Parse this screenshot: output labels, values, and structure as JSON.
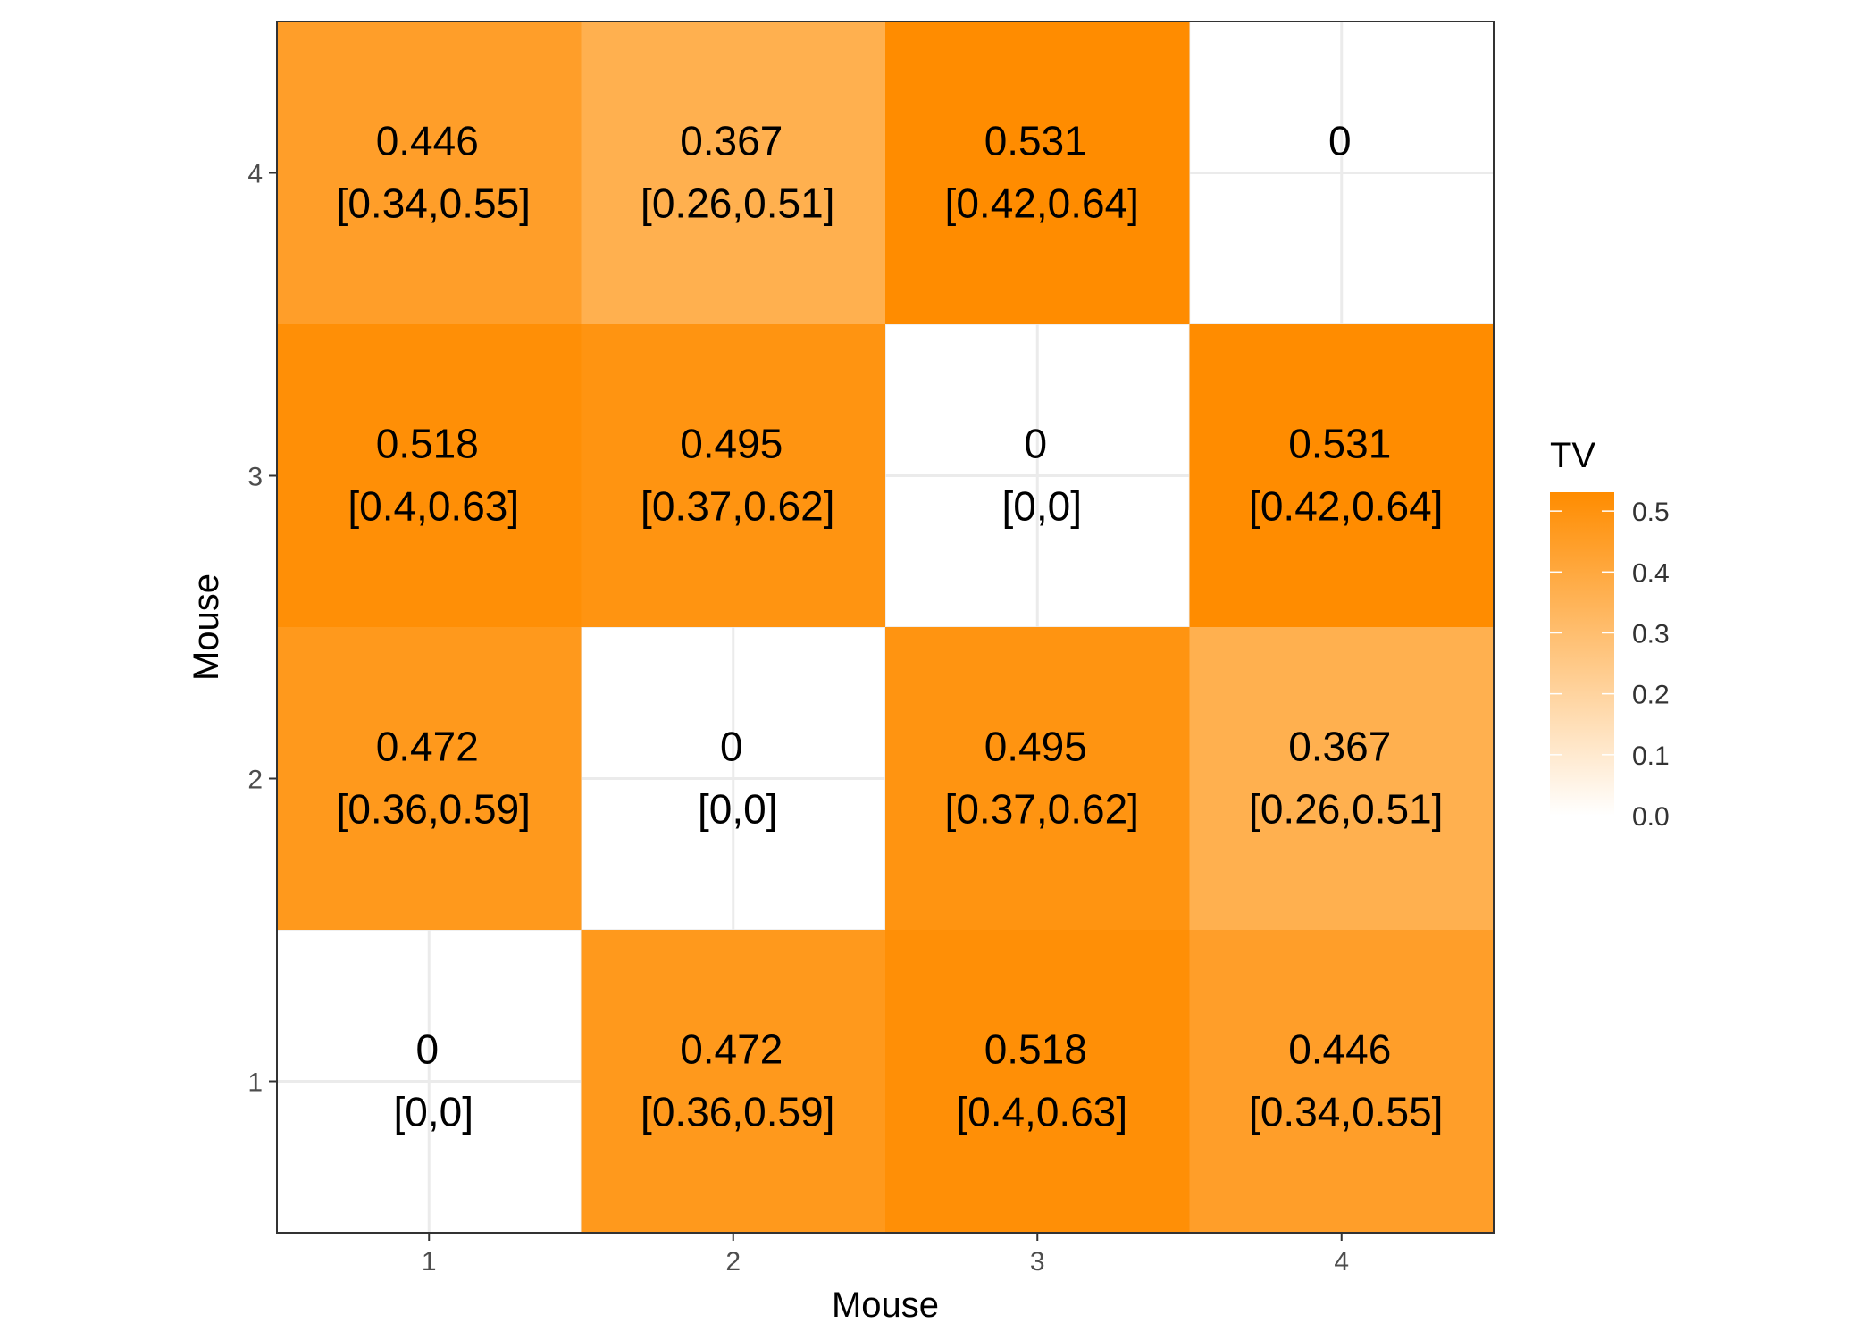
{
  "chart_data": {
    "type": "heatmap",
    "x": [
      1,
      2,
      3,
      4
    ],
    "y": [
      1,
      2,
      3,
      4
    ],
    "xlabel": "Mouse",
    "ylabel": "Mouse",
    "xlim": [
      0.5,
      4.5
    ],
    "ylim": [
      0.5,
      4.5
    ],
    "grid": true,
    "cells": [
      {
        "x": 1,
        "y": 1,
        "value": 0,
        "label": "0",
        "interval": "[0,0]"
      },
      {
        "x": 2,
        "y": 1,
        "value": 0.472,
        "label": "0.472",
        "interval": "[0.36,0.59]"
      },
      {
        "x": 3,
        "y": 1,
        "value": 0.518,
        "label": "0.518",
        "interval": "[0.4,0.63]"
      },
      {
        "x": 4,
        "y": 1,
        "value": 0.446,
        "label": "0.446",
        "interval": "[0.34,0.55]"
      },
      {
        "x": 1,
        "y": 2,
        "value": 0.472,
        "label": "0.472",
        "interval": "[0.36,0.59]"
      },
      {
        "x": 2,
        "y": 2,
        "value": 0,
        "label": "0",
        "interval": "[0,0]"
      },
      {
        "x": 3,
        "y": 2,
        "value": 0.495,
        "label": "0.495",
        "interval": "[0.37,0.62]"
      },
      {
        "x": 4,
        "y": 2,
        "value": 0.367,
        "label": "0.367",
        "interval": "[0.26,0.51]"
      },
      {
        "x": 1,
        "y": 3,
        "value": 0.518,
        "label": "0.518",
        "interval": "[0.4,0.63]"
      },
      {
        "x": 2,
        "y": 3,
        "value": 0.495,
        "label": "0.495",
        "interval": "[0.37,0.62]"
      },
      {
        "x": 3,
        "y": 3,
        "value": 0,
        "label": "0",
        "interval": "[0,0]"
      },
      {
        "x": 4,
        "y": 3,
        "value": 0.531,
        "label": "0.531",
        "interval": "[0.42,0.64]"
      },
      {
        "x": 1,
        "y": 4,
        "value": 0.446,
        "label": "0.446",
        "interval": "[0.34,0.55]"
      },
      {
        "x": 2,
        "y": 4,
        "value": 0.367,
        "label": "0.367",
        "interval": "[0.26,0.51]"
      },
      {
        "x": 3,
        "y": 4,
        "value": 0.531,
        "label": "0.531",
        "interval": "[0.42,0.64]"
      },
      {
        "x": 4,
        "y": 4,
        "value": 0,
        "label": "0",
        "interval": null
      }
    ],
    "legend": {
      "title": "TV",
      "position": "right",
      "breaks": [
        "0.0",
        "0.1",
        "0.2",
        "0.3",
        "0.4",
        "0.5"
      ],
      "break_values": [
        0,
        0.1,
        0.2,
        0.3,
        0.4,
        0.5
      ],
      "range": [
        0,
        0.531
      ]
    },
    "colors": {
      "low": "#ffffff",
      "high": "#ff8c00",
      "panel_border": "#333333",
      "grid": "#ebebeb"
    }
  }
}
